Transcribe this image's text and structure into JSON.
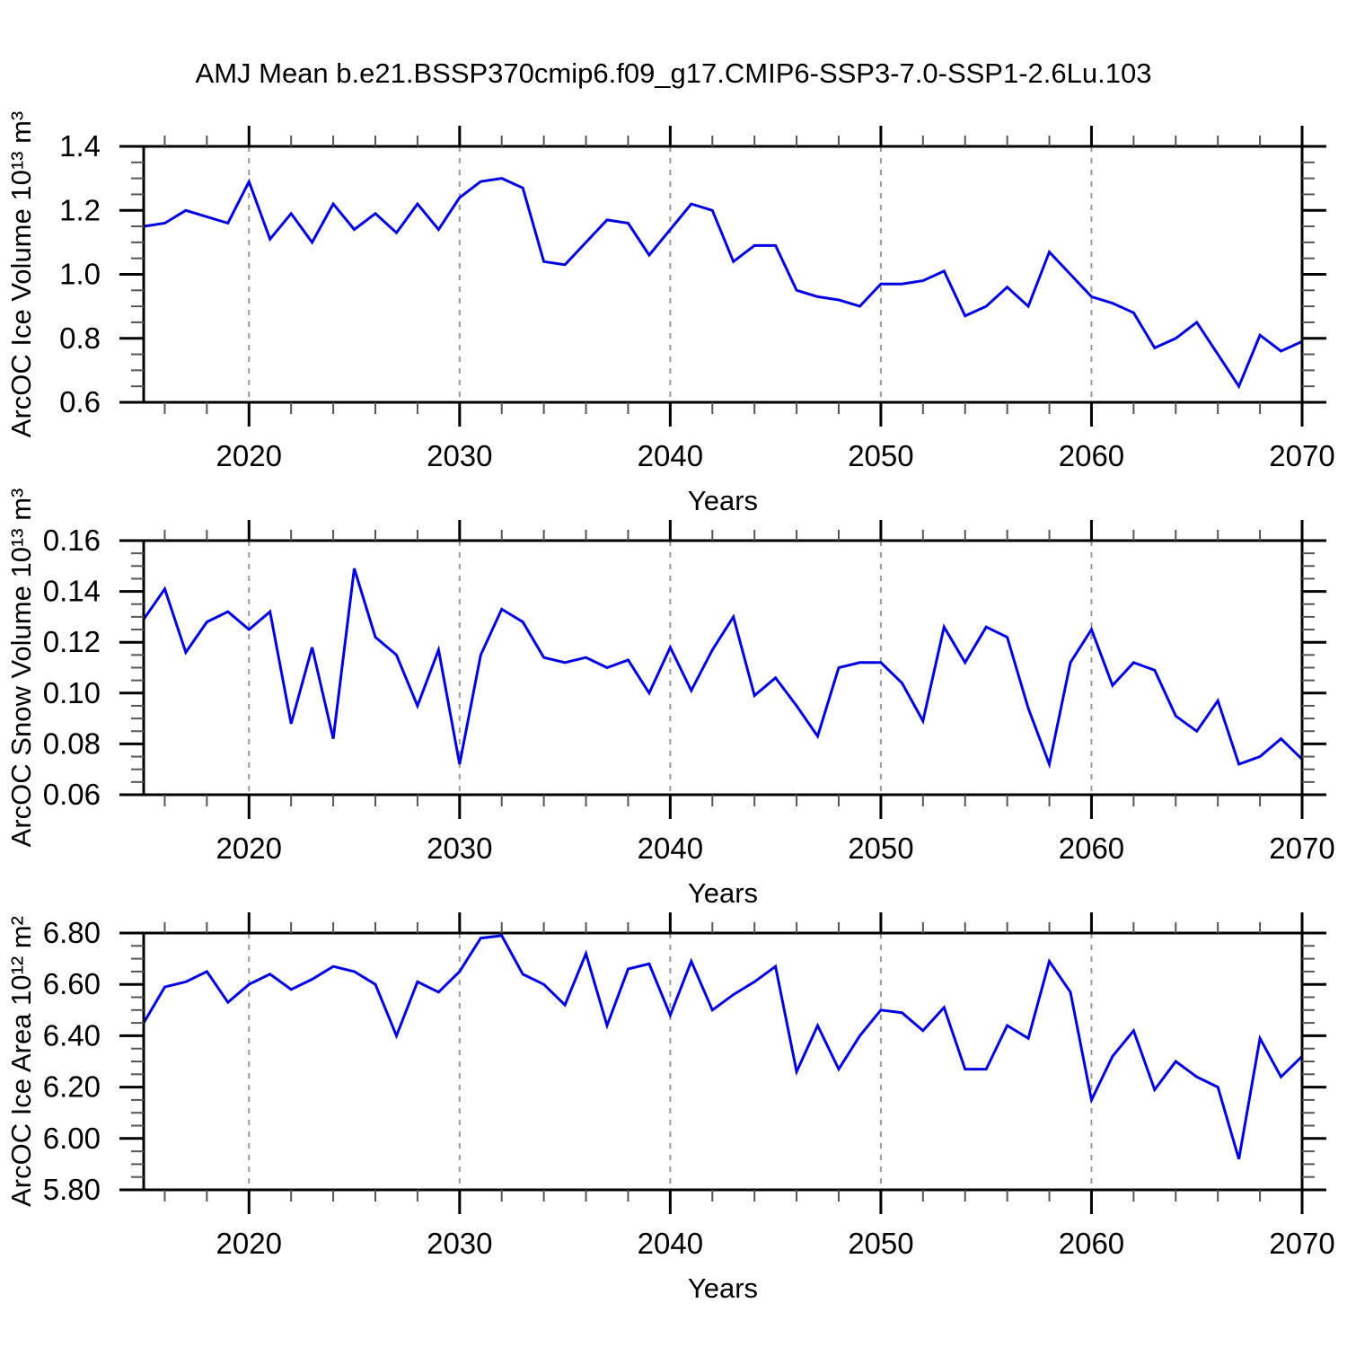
{
  "title": "AMJ Mean b.e21.BSSP370cmip6.f09_g17.CMIP6-SSP3-7.0-SSP1-2.6Lu.103",
  "line_color": "#0000e0",
  "grid_color": "#999999",
  "axis_color": "#000000",
  "chart_data": [
    {
      "name": "ice-volume",
      "type": "line",
      "title": "",
      "ylabel": "ArcOC Ice Volume 10¹³ m³",
      "xlabel": "Years",
      "ylim": [
        0.6,
        1.4
      ],
      "ytick_step": 0.2,
      "ytick_minor_step": 0.05,
      "ytick_decimals": 1,
      "xlim": [
        2015,
        2070
      ],
      "xticks": [
        2020,
        2030,
        2040,
        2050,
        2060,
        2070
      ],
      "xtick_minor_step": 2,
      "grid_x": [
        2020,
        2030,
        2040,
        2050,
        2060
      ],
      "x_start": 2015,
      "values": [
        1.15,
        1.16,
        1.2,
        1.18,
        1.16,
        1.29,
        1.11,
        1.19,
        1.1,
        1.22,
        1.14,
        1.19,
        1.13,
        1.22,
        1.14,
        1.24,
        1.29,
        1.3,
        1.27,
        1.04,
        1.03,
        1.1,
        1.17,
        1.16,
        1.06,
        1.14,
        1.22,
        1.2,
        1.04,
        1.09,
        1.09,
        0.95,
        0.93,
        0.92,
        0.9,
        0.97,
        0.97,
        0.98,
        1.01,
        0.87,
        0.9,
        0.96,
        0.9,
        1.07,
        1.0,
        0.93,
        0.91,
        0.88,
        0.77,
        0.8,
        0.85,
        0.75,
        0.65,
        0.81,
        0.76,
        0.79
      ]
    },
    {
      "name": "snow-volume",
      "type": "line",
      "title": "",
      "ylabel": "ArcOC Snow Volume 10¹³ m³",
      "xlabel": "Years",
      "ylim": [
        0.06,
        0.16
      ],
      "ytick_step": 0.02,
      "ytick_minor_step": 0.005,
      "ytick_decimals": 2,
      "xlim": [
        2015,
        2070
      ],
      "xticks": [
        2020,
        2030,
        2040,
        2050,
        2060,
        2070
      ],
      "xtick_minor_step": 2,
      "grid_x": [
        2020,
        2030,
        2040,
        2050,
        2060
      ],
      "x_start": 2015,
      "values": [
        0.129,
        0.141,
        0.116,
        0.128,
        0.132,
        0.125,
        0.132,
        0.088,
        0.118,
        0.082,
        0.149,
        0.122,
        0.115,
        0.095,
        0.117,
        0.072,
        0.115,
        0.133,
        0.128,
        0.114,
        0.112,
        0.114,
        0.11,
        0.113,
        0.1,
        0.118,
        0.101,
        0.117,
        0.13,
        0.099,
        0.106,
        0.095,
        0.083,
        0.11,
        0.112,
        0.112,
        0.104,
        0.089,
        0.126,
        0.112,
        0.126,
        0.122,
        0.094,
        0.072,
        0.112,
        0.125,
        0.103,
        0.112,
        0.109,
        0.091,
        0.085,
        0.097,
        0.072,
        0.075,
        0.082,
        0.074
      ]
    },
    {
      "name": "ice-area",
      "type": "line",
      "title": "",
      "ylabel": "ArcOC Ice Area 10¹² m²",
      "xlabel": "Years",
      "ylim": [
        5.8,
        6.8
      ],
      "ytick_step": 0.2,
      "ytick_minor_step": 0.05,
      "ytick_decimals": 2,
      "xlim": [
        2015,
        2070
      ],
      "xticks": [
        2020,
        2030,
        2040,
        2050,
        2060,
        2070
      ],
      "xtick_minor_step": 2,
      "grid_x": [
        2020,
        2030,
        2040,
        2050,
        2060
      ],
      "x_start": 2015,
      "values": [
        6.45,
        6.59,
        6.61,
        6.65,
        6.53,
        6.6,
        6.64,
        6.58,
        6.62,
        6.67,
        6.65,
        6.6,
        6.4,
        6.61,
        6.57,
        6.65,
        6.78,
        6.79,
        6.64,
        6.6,
        6.52,
        6.72,
        6.44,
        6.66,
        6.68,
        6.48,
        6.69,
        6.5,
        6.56,
        6.61,
        6.67,
        6.26,
        6.44,
        6.27,
        6.4,
        6.5,
        6.49,
        6.42,
        6.51,
        6.27,
        6.27,
        6.44,
        6.39,
        6.69,
        6.57,
        6.15,
        6.32,
        6.42,
        6.19,
        6.3,
        6.24,
        6.2,
        5.92,
        6.39,
        6.24,
        6.32
      ]
    }
  ]
}
